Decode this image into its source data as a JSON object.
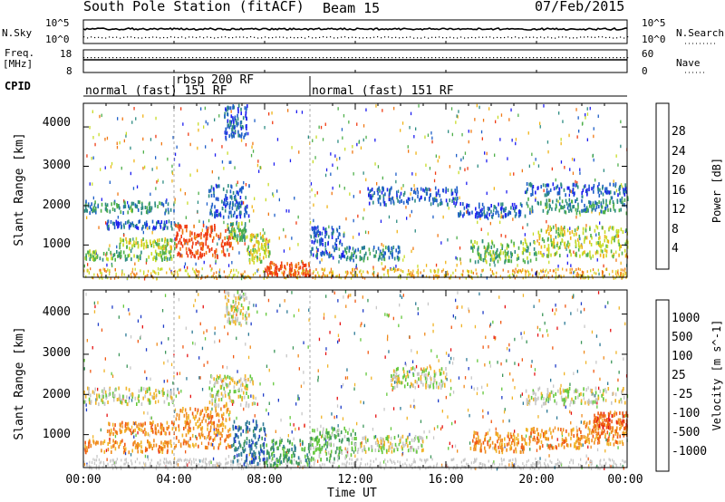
{
  "header": {
    "station": "South Pole Station (fitACF)",
    "beam": "Beam 15",
    "date": "07/Feb/2015"
  },
  "top_panels": {
    "nsky_label": "N.Sky",
    "nsky_ticks": [
      "10^5",
      "10^0"
    ],
    "nsearch_label": "N.Search",
    "nsearch_ticks": [
      "10^5",
      "10^0"
    ],
    "freq_label": "Freq.",
    "freq_units": "[MHz]",
    "freq_ticks": [
      "18",
      "8"
    ],
    "nave_label": "Nave",
    "nave_ticks": [
      "60",
      "0"
    ],
    "cpid_label": "CPID",
    "cpid_segments": [
      {
        "label": "normal (fast) 151 RF",
        "start_h": 0,
        "end_h": 4
      },
      {
        "label": "rbsp 200 RF",
        "start_h": 4,
        "end_h": 10
      },
      {
        "label": "normal (fast) 151 RF",
        "start_h": 10,
        "end_h": 24
      }
    ]
  },
  "x_axis": {
    "label": "Time UT",
    "ticks": [
      "00:00",
      "04:00",
      "08:00",
      "12:00",
      "16:00",
      "20:00",
      "00:00"
    ]
  },
  "chart_data": [
    {
      "type": "heatmap",
      "name": "power",
      "xlabel": "Time UT",
      "ylabel": "Slant Range [km]",
      "xlim_hours": [
        0,
        24
      ],
      "ylim": [
        180,
        4600
      ],
      "yticks": [
        1000,
        2000,
        3000,
        4000
      ],
      "colorbar": {
        "label": "Power [dB]",
        "ticks": [
          "4",
          "8",
          "12",
          "16",
          "20",
          "24",
          "28"
        ],
        "levels": [
          0,
          4,
          8,
          12,
          16,
          20,
          24,
          28,
          32
        ],
        "colors": [
          "#1e1ef0",
          "#1e5fc8",
          "#2d8c82",
          "#4fb04b",
          "#c8dc28",
          "#f0b418",
          "#f07814",
          "#f03c14"
        ]
      },
      "regions": [
        {
          "t": [
            0.0,
            4.0
          ],
          "r": [
            1850,
            2150
          ],
          "level": 2
        },
        {
          "t": [
            1.0,
            4.2
          ],
          "r": [
            1450,
            1650
          ],
          "level": 1
        },
        {
          "t": [
            0.0,
            4.0
          ],
          "r": [
            650,
            900
          ],
          "level": 3
        },
        {
          "t": [
            1.5,
            4.0
          ],
          "r": [
            950,
            1200
          ],
          "level": 4
        },
        {
          "t": [
            4.0,
            6.6
          ],
          "r": [
            700,
            1550
          ],
          "level": 7
        },
        {
          "t": [
            6.3,
            7.2
          ],
          "r": [
            1150,
            1600
          ],
          "level": 3
        },
        {
          "t": [
            5.5,
            7.3
          ],
          "r": [
            1750,
            2550
          ],
          "level": 1
        },
        {
          "t": [
            6.2,
            7.2
          ],
          "r": [
            3700,
            4600
          ],
          "level": 1
        },
        {
          "t": [
            7.2,
            8.2
          ],
          "r": [
            600,
            1300
          ],
          "level": 4
        },
        {
          "t": [
            8.0,
            10.0
          ],
          "r": [
            250,
            600
          ],
          "level": 7
        },
        {
          "t": [
            10.0,
            11.5
          ],
          "r": [
            700,
            1500
          ],
          "level": 1
        },
        {
          "t": [
            11.5,
            14.0
          ],
          "r": [
            650,
            1000
          ],
          "level": 2
        },
        {
          "t": [
            12.5,
            16.5
          ],
          "r": [
            2050,
            2500
          ],
          "level": 1
        },
        {
          "t": [
            16.5,
            19.5
          ],
          "r": [
            1750,
            2100
          ],
          "level": 1
        },
        {
          "t": [
            17.0,
            20.0
          ],
          "r": [
            600,
            1150
          ],
          "level": 3
        },
        {
          "t": [
            19.5,
            24.0
          ],
          "r": [
            1850,
            2250
          ],
          "level": 2
        },
        {
          "t": [
            19.5,
            24.0
          ],
          "r": [
            2300,
            2600
          ],
          "level": 1
        },
        {
          "t": [
            20.0,
            24.0
          ],
          "r": [
            750,
            1500
          ],
          "level": 4
        }
      ],
      "ground_scatter_levels": [
        4,
        5,
        6
      ]
    },
    {
      "type": "heatmap",
      "name": "velocity",
      "xlabel": "Time UT",
      "ylabel": "Slant Range [km]",
      "xlim_hours": [
        0,
        24
      ],
      "ylim": [
        180,
        4600
      ],
      "yticks": [
        1000,
        2000,
        3000,
        4000
      ],
      "colorbar": {
        "label": "Velocity [m s^-1]",
        "ticks": [
          "1000",
          "500",
          "100",
          "25",
          "-25",
          "-100",
          "-500",
          "-1000"
        ],
        "colors": [
          "#1e3cc8",
          "#2d7a96",
          "#3c965a",
          "#64c83c",
          "#c8c8c8",
          "#f0b428",
          "#f08c1e",
          "#f05a14",
          "#e61414"
        ]
      },
      "regions": [
        {
          "t": [
            0.0,
            4.0
          ],
          "r": [
            1800,
            2200
          ],
          "level": 4
        },
        {
          "t": [
            0.0,
            4.0
          ],
          "r": [
            600,
            900
          ],
          "level": 6
        },
        {
          "t": [
            1.0,
            4.0
          ],
          "r": [
            1050,
            1350
          ],
          "level": 6
        },
        {
          "t": [
            4.0,
            6.5
          ],
          "r": [
            700,
            1700
          ],
          "level": 6
        },
        {
          "t": [
            5.5,
            7.5
          ],
          "r": [
            1750,
            2500
          ],
          "level": 4
        },
        {
          "t": [
            6.2,
            7.3
          ],
          "r": [
            3800,
            4600
          ],
          "level": 4
        },
        {
          "t": [
            6.5,
            8.0
          ],
          "r": [
            300,
            1400
          ],
          "level": 1
        },
        {
          "t": [
            8.0,
            10.0
          ],
          "r": [
            250,
            900
          ],
          "level": 2
        },
        {
          "t": [
            10.0,
            12.0
          ],
          "r": [
            400,
            1200
          ],
          "level": 3
        },
        {
          "t": [
            12.0,
            15.0
          ],
          "r": [
            600,
            1000
          ],
          "level": 4
        },
        {
          "t": [
            13.5,
            16.0
          ],
          "r": [
            2200,
            2700
          ],
          "level": 4
        },
        {
          "t": [
            17.0,
            19.5
          ],
          "r": [
            600,
            1100
          ],
          "level": 6
        },
        {
          "t": [
            19.5,
            22.0
          ],
          "r": [
            700,
            1200
          ],
          "level": 6
        },
        {
          "t": [
            22.0,
            24.0
          ],
          "r": [
            800,
            1400
          ],
          "level": 6
        },
        {
          "t": [
            19.5,
            24.0
          ],
          "r": [
            1800,
            2200
          ],
          "level": 4
        },
        {
          "t": [
            22.5,
            24.0
          ],
          "r": [
            1200,
            1600
          ],
          "level": 7
        }
      ],
      "ground_scatter_levels": [
        4
      ]
    }
  ]
}
